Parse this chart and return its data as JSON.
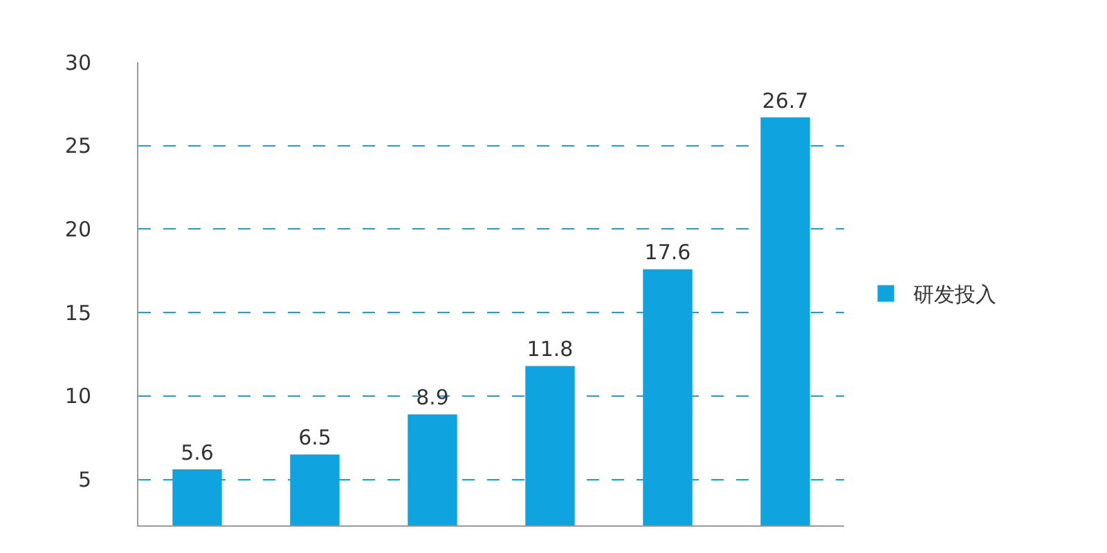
{
  "chart_data": {
    "type": "bar",
    "categories": [
      null,
      null,
      null,
      null,
      null,
      null
    ],
    "series": [
      {
        "name": "研发投入",
        "color": "#0fa3e0",
        "values": [
          5.6,
          6.5,
          8.9,
          11.8,
          17.6,
          26.7
        ]
      }
    ],
    "ylim": [
      2.25,
      30
    ],
    "yticks": [
      5,
      10,
      15,
      20,
      25,
      30
    ],
    "grid": "y",
    "legend": "right",
    "data_labels": true,
    "tick_labels": "y"
  }
}
